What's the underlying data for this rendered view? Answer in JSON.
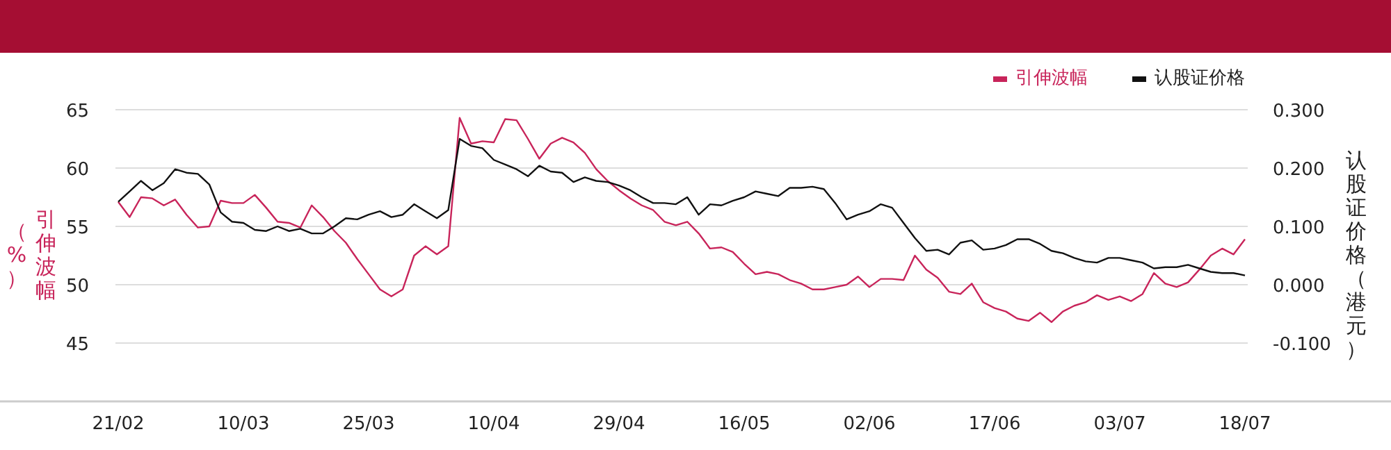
{
  "chart_data": {
    "type": "line",
    "categories": [
      "21/02",
      null,
      null,
      null,
      null,
      null,
      null,
      null,
      null,
      null,
      null,
      "10/03",
      null,
      null,
      null,
      null,
      null,
      null,
      null,
      null,
      null,
      null,
      "25/03",
      null,
      null,
      null,
      null,
      null,
      null,
      null,
      null,
      null,
      null,
      "10/04",
      null,
      null,
      null,
      null,
      null,
      null,
      null,
      null,
      null,
      null,
      "29/04",
      null,
      null,
      null,
      null,
      null,
      null,
      null,
      null,
      null,
      null,
      "16/05",
      null,
      null,
      null,
      null,
      null,
      null,
      null,
      null,
      null,
      null,
      "02/06",
      null,
      null,
      null,
      null,
      null,
      null,
      null,
      null,
      null,
      null,
      "17/06",
      null,
      null,
      null,
      null,
      null,
      null,
      null,
      null,
      null,
      null,
      "03/07",
      null,
      null,
      null,
      null,
      null,
      null,
      null,
      null,
      null,
      null,
      "18/07"
    ],
    "series": [
      {
        "name": "引伸波幅",
        "color": "#c8245a",
        "values": [
          57.1,
          55.8,
          57.5,
          57.4,
          56.8,
          57.3,
          56.0,
          54.9,
          55.0,
          57.2,
          57.0,
          57.0,
          57.7,
          56.6,
          55.4,
          55.3,
          54.9,
          56.8,
          55.8,
          54.6,
          53.6,
          52.2,
          50.9,
          49.6,
          49.0,
          49.6,
          52.5,
          53.3,
          52.6,
          53.3,
          64.3,
          62.1,
          62.3,
          62.2,
          64.2,
          64.1,
          62.5,
          60.8,
          62.1,
          62.6,
          62.2,
          61.3,
          59.9,
          58.9,
          58.1,
          57.4,
          56.8,
          56.4,
          55.4,
          55.1,
          55.4,
          54.4,
          53.1,
          53.2,
          52.8,
          51.8,
          50.9,
          51.1,
          50.9,
          50.4,
          50.1,
          49.6,
          49.6,
          49.8,
          50.0,
          50.7,
          49.8,
          50.5,
          50.5,
          50.4,
          52.5,
          51.3,
          50.6,
          49.4,
          49.2,
          50.1,
          48.5,
          48.0,
          47.7,
          47.1,
          46.9,
          47.6,
          46.8,
          47.7,
          48.2,
          48.5,
          49.1,
          48.7,
          49.0,
          48.6,
          49.2,
          51.0,
          50.1,
          49.8,
          50.2,
          51.3,
          52.5,
          53.1,
          52.6,
          53.9
        ]
      },
      {
        "name": "认股证价格",
        "color": "#111111",
        "axis": "y2",
        "values": [
          0.142,
          0.16,
          0.178,
          0.162,
          0.174,
          0.198,
          0.192,
          0.19,
          0.172,
          0.124,
          0.108,
          0.106,
          0.094,
          0.092,
          0.1,
          0.092,
          0.096,
          0.088,
          0.088,
          0.1,
          0.114,
          0.112,
          0.12,
          0.126,
          0.116,
          0.12,
          0.138,
          0.126,
          0.114,
          0.128,
          0.25,
          0.238,
          0.234,
          0.214,
          0.206,
          0.198,
          0.186,
          0.204,
          0.194,
          0.192,
          0.176,
          0.184,
          0.178,
          0.176,
          0.17,
          0.162,
          0.15,
          0.14,
          0.14,
          0.138,
          0.15,
          0.12,
          0.138,
          0.136,
          0.144,
          0.15,
          0.16,
          0.156,
          0.152,
          0.166,
          0.166,
          0.168,
          0.164,
          0.14,
          0.112,
          0.12,
          0.126,
          0.138,
          0.132,
          0.106,
          0.08,
          0.058,
          0.06,
          0.052,
          0.072,
          0.076,
          0.06,
          0.062,
          0.068,
          0.078,
          0.078,
          0.07,
          0.058,
          0.054,
          0.046,
          0.04,
          0.038,
          0.046,
          0.046,
          0.042,
          0.038,
          0.028,
          0.03,
          0.03,
          0.034,
          0.028,
          0.022,
          0.02,
          0.02,
          0.016
        ]
      }
    ],
    "ylabel": "引伸波幅（%）",
    "y2label": "认股证价格（港元）",
    "ylim": [
      40,
      65
    ],
    "yticks": [
      45,
      50,
      55,
      60,
      65
    ],
    "y2lim": [
      -0.2,
      0.3
    ],
    "y2ticks": [
      {
        "value": -0.1,
        "label": "-0.100"
      },
      {
        "value": 0,
        "label": "0.000"
      },
      {
        "value": 0.1,
        "label": "0.100"
      },
      {
        "value": 0.2,
        "label": "0.200"
      },
      {
        "value": 0.3,
        "label": "0.300"
      }
    ],
    "grid": "y",
    "legend": "top right"
  }
}
